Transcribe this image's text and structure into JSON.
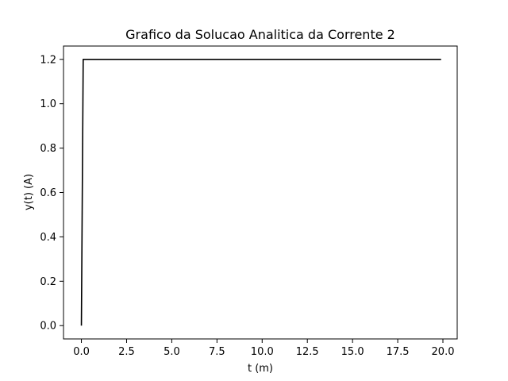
{
  "chart_data": {
    "type": "line",
    "title": "Grafico da Solucao Analitica da Corrente 2",
    "xlabel": "t (m)",
    "ylabel": "y(t) (A)",
    "xlim": [
      -0.99,
      20.79
    ],
    "ylim": [
      -0.06,
      1.26
    ],
    "xticks": [
      0.0,
      2.5,
      5.0,
      7.5,
      10.0,
      12.5,
      15.0,
      17.5,
      20.0
    ],
    "xtick_labels": [
      "0.0",
      "2.5",
      "5.0",
      "7.5",
      "10.0",
      "12.5",
      "15.0",
      "17.5",
      "20.0"
    ],
    "yticks": [
      0.0,
      0.2,
      0.4,
      0.6,
      0.8,
      1.0,
      1.2
    ],
    "ytick_labels": [
      "0.0",
      "0.2",
      "0.4",
      "0.6",
      "0.8",
      "1.0",
      "1.2"
    ],
    "grid": false,
    "series": [
      {
        "color": "#000000",
        "x": [
          0.0,
          0.1,
          0.2,
          1.0,
          5.0,
          10.0,
          15.0,
          19.9
        ],
        "y": [
          0.0,
          1.2,
          1.2,
          1.2,
          1.2,
          1.2,
          1.2,
          1.2
        ]
      }
    ]
  }
}
